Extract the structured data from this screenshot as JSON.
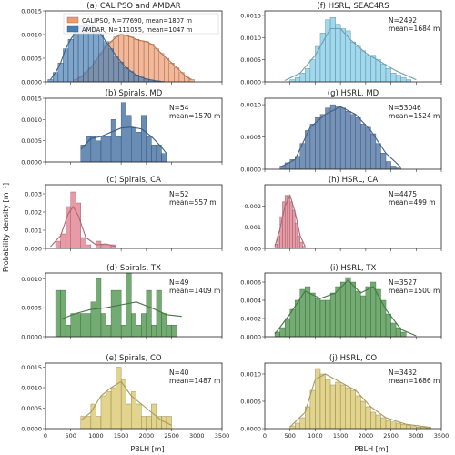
{
  "figure": {
    "ylabel": "Probability density [m⁻¹]",
    "xlabel": "PBLH [m]",
    "xlim": [
      0,
      3500
    ],
    "xticks": [
      0,
      500,
      1000,
      1500,
      2000,
      2500,
      3000,
      3500
    ]
  },
  "chart_data": [
    {
      "type": "bar",
      "id": "a",
      "title": "(a) CALIPSO and AMDAR",
      "ylim": [
        0,
        0.0015
      ],
      "yticks": [
        "0.0000",
        "0.0005",
        "0.0010",
        "0.0015"
      ],
      "legend": "top",
      "bin_width": 100,
      "series": [
        {
          "name": "CALIPSO, N=77690, mean=1807 m",
          "color": "#ee9a6f",
          "x": [
            600,
            700,
            800,
            900,
            1000,
            1100,
            1200,
            1300,
            1400,
            1500,
            1600,
            1700,
            1800,
            1900,
            2000,
            2100,
            2200,
            2300,
            2400,
            2500,
            2600,
            2700,
            2800,
            2900
          ],
          "values": [
            5e-05,
            0.0001,
            0.0002,
            0.0003,
            0.00045,
            0.0006,
            0.00075,
            0.00085,
            0.00095,
            0.001,
            0.00098,
            0.00095,
            0.0009,
            0.00087,
            0.00085,
            0.0008,
            0.0007,
            0.0006,
            0.0005,
            0.0004,
            0.0003,
            0.0002,
            0.0001,
            5e-05
          ]
        },
        {
          "name": "AMDAR, N=111055, mean=1047 m",
          "color": "#4a7fb3",
          "x": [
            100,
            200,
            300,
            400,
            500,
            600,
            700,
            800,
            900,
            1000,
            1100,
            1200,
            1300,
            1400,
            1500,
            1600,
            1700,
            1800,
            1900,
            2000,
            2100,
            2200,
            2300
          ],
          "values": [
            5e-05,
            0.0002,
            0.0004,
            0.0007,
            0.0009,
            0.00105,
            0.00118,
            0.00122,
            0.0012,
            0.00113,
            0.001,
            0.00085,
            0.0007,
            0.00055,
            0.00042,
            0.0003,
            0.00022,
            0.00015,
            0.0001,
            6e-05,
            4e-05,
            2e-05,
            1e-05
          ]
        }
      ]
    },
    {
      "type": "bar",
      "id": "b",
      "title": "(b) Spirals, MD",
      "annotation": [
        "N=54",
        "mean=1570 m"
      ],
      "ylim": [
        0,
        0.0015
      ],
      "yticks": [
        "0.0000",
        "0.0005",
        "0.0010",
        "0.0015"
      ],
      "color": "#4f79a8",
      "bin_width": 100,
      "x": [
        750,
        850,
        950,
        1050,
        1150,
        1250,
        1350,
        1450,
        1550,
        1650,
        1750,
        1850,
        1950,
        2050,
        2150,
        2250,
        2350
      ],
      "values": [
        0.0004,
        0.0006,
        0.0006,
        0.0005,
        0.0006,
        0.0006,
        0.001,
        0.0006,
        0.0014,
        0.0011,
        0.0008,
        0.0007,
        0.0011,
        0.0006,
        0.0004,
        0.0004,
        0.0002
      ],
      "kde": [
        [
          700,
          0.0003
        ],
        [
          900,
          0.00055
        ],
        [
          1100,
          0.0006
        ],
        [
          1300,
          0.0007
        ],
        [
          1500,
          0.0008
        ],
        [
          1700,
          0.00082
        ],
        [
          1900,
          0.00078
        ],
        [
          2100,
          0.0006
        ],
        [
          2300,
          0.00035
        ],
        [
          2400,
          0.0002
        ]
      ]
    },
    {
      "type": "bar",
      "id": "c",
      "title": "(c) Spirals, CA",
      "annotation": [
        "N=52",
        "mean=557 m"
      ],
      "ylim": [
        0,
        0.0035
      ],
      "yticks": [
        "0.000",
        "0.001",
        "0.002",
        "0.003"
      ],
      "color": "#e48a96",
      "bin_width": 100,
      "x": [
        250,
        350,
        450,
        550,
        650,
        750,
        850,
        950,
        1050,
        1150,
        1250,
        1350
      ],
      "values": [
        0.0004,
        0.0008,
        0.0023,
        0.0031,
        0.0025,
        0.0006,
        0.0002,
        0,
        0.0004,
        0.0002,
        0.0002,
        0.0002
      ],
      "kde": [
        [
          100,
          0.0001
        ],
        [
          300,
          0.0007
        ],
        [
          450,
          0.0019
        ],
        [
          550,
          0.0023
        ],
        [
          650,
          0.0018
        ],
        [
          800,
          0.0006
        ],
        [
          1000,
          0.0002
        ],
        [
          1200,
          0.00025
        ],
        [
          1400,
          0.0001
        ]
      ]
    },
    {
      "type": "bar",
      "id": "d",
      "title": "(d) Spirals, TX",
      "annotation": [
        "N=49",
        "mean=1409 m"
      ],
      "ylim": [
        0,
        0.0011
      ],
      "yticks": [
        "0.0000",
        "0.0005",
        "0.0010"
      ],
      "color": "#5a9e5a",
      "bin_width": 100,
      "x": [
        250,
        350,
        450,
        550,
        650,
        750,
        850,
        950,
        1050,
        1150,
        1250,
        1350,
        1450,
        1550,
        1650,
        1750,
        1850,
        1950,
        2050,
        2150,
        2250,
        2350,
        2450,
        2550
      ],
      "values": [
        0.0008,
        0.0008,
        0.0002,
        0.0004,
        0.0004,
        0.0004,
        0.0004,
        0.0006,
        0.001,
        0.0004,
        0.0002,
        0.0008,
        0.0008,
        0.0002,
        0.0011,
        0.0004,
        0.0002,
        0.0004,
        0.0008,
        0.0002,
        0.0008,
        0.0004,
        0.0002,
        0.0002
      ],
      "kde": [
        [
          300,
          0.0003
        ],
        [
          600,
          0.0004
        ],
        [
          900,
          0.00047
        ],
        [
          1200,
          0.0005
        ],
        [
          1500,
          0.00055
        ],
        [
          1800,
          0.0006
        ],
        [
          2100,
          0.0005
        ],
        [
          2400,
          0.00038
        ],
        [
          2700,
          0.00035
        ]
      ]
    },
    {
      "type": "bar",
      "id": "e",
      "title": "(e) Spirals, CO",
      "annotation": [
        "N=40",
        "mean=1487 m"
      ],
      "ylim": [
        0,
        0.0016
      ],
      "yticks": [
        "0.0000",
        "0.0005",
        "0.0010",
        "0.0015"
      ],
      "color": "#ddcd79",
      "bin_width": 100,
      "x": [
        750,
        850,
        950,
        1050,
        1150,
        1250,
        1350,
        1450,
        1550,
        1650,
        1750,
        1850,
        1950,
        2050,
        2150,
        2250,
        2350,
        2450
      ],
      "values": [
        0.0003,
        0.0003,
        0.0006,
        0.0003,
        0.0008,
        0.0009,
        0.001,
        0.0015,
        0.0012,
        0.0006,
        0.0009,
        0.0006,
        0.0003,
        0.0003,
        0.0006,
        0.0003,
        0.0003,
        0.0003
      ],
      "kde": [
        [
          700,
          0.0002
        ],
        [
          900,
          0.0004
        ],
        [
          1100,
          0.0008
        ],
        [
          1300,
          0.001
        ],
        [
          1500,
          0.00115
        ],
        [
          1700,
          0.0008
        ],
        [
          1900,
          0.0006
        ],
        [
          2100,
          0.0004
        ],
        [
          2300,
          0.0002
        ],
        [
          2500,
          8e-05
        ]
      ]
    },
    {
      "type": "bar",
      "id": "f",
      "title": "(f) HSRL, SEAC4RS",
      "annotation": [
        "N=2492",
        "mean=1684 m"
      ],
      "ylim": [
        0,
        0.0016
      ],
      "yticks": [
        "0.0000",
        "0.0005",
        "0.0010",
        "0.0015"
      ],
      "color": "#8fd2ea",
      "bin_width": 100,
      "x": [
        550,
        650,
        750,
        850,
        950,
        1050,
        1150,
        1250,
        1350,
        1450,
        1550,
        1650,
        1750,
        1850,
        1950,
        2050,
        2150,
        2250,
        2350,
        2450,
        2550,
        2650,
        2750,
        2850
      ],
      "values": [
        5e-05,
        0.0001,
        0.0002,
        0.0003,
        0.0005,
        0.0008,
        0.0011,
        0.0014,
        0.00145,
        0.0013,
        0.0012,
        0.00115,
        0.0009,
        0.0008,
        0.0007,
        0.0006,
        0.0006,
        0.0005,
        0.0004,
        0.0003,
        0.0002,
        0.00015,
        0.0001,
        5e-05
      ],
      "kde": [
        [
          400,
          3e-05
        ],
        [
          700,
          0.0002
        ],
        [
          1000,
          0.0006
        ],
        [
          1300,
          0.0012
        ],
        [
          1500,
          0.0012
        ],
        [
          1700,
          0.00095
        ],
        [
          2000,
          0.00065
        ],
        [
          2300,
          0.00045
        ],
        [
          2600,
          0.00025
        ],
        [
          3000,
          5e-05
        ]
      ]
    },
    {
      "type": "bar",
      "id": "g",
      "title": "(g) HSRL, MD",
      "annotation": [
        "N=53046",
        "mean=1524 m"
      ],
      "ylim": [
        0,
        0.0011
      ],
      "yticks": [
        "0.0000",
        "0.0005",
        "0.0010"
      ],
      "color": "#5d7fad",
      "bin_width": 100,
      "x": [
        350,
        450,
        550,
        650,
        750,
        850,
        950,
        1050,
        1150,
        1250,
        1350,
        1450,
        1550,
        1650,
        1750,
        1850,
        1950,
        2050,
        2150,
        2250,
        2350,
        2450,
        2550,
        2650
      ],
      "values": [
        5e-05,
        0.0001,
        0.00015,
        0.0002,
        0.0004,
        0.0006,
        0.0007,
        0.0008,
        0.00085,
        0.00095,
        0.001,
        0.00098,
        0.00095,
        0.0009,
        0.00085,
        0.0008,
        0.0007,
        0.00065,
        0.00055,
        0.0004,
        0.00025,
        0.00012,
        5e-05,
        2e-05
      ],
      "kde": [
        [
          300,
          3e-05
        ],
        [
          600,
          0.00015
        ],
        [
          900,
          0.00065
        ],
        [
          1200,
          0.00085
        ],
        [
          1500,
          0.00097
        ],
        [
          1800,
          0.00085
        ],
        [
          2100,
          0.0006
        ],
        [
          2400,
          0.00025
        ],
        [
          2700,
          3e-05
        ]
      ]
    },
    {
      "type": "bar",
      "id": "h",
      "title": "(h) HSRL, CA",
      "annotation": [
        "N=4475",
        "mean=499 m"
      ],
      "ylim": [
        0,
        0.003
      ],
      "yticks": [
        "0.000",
        "0.001",
        "0.002"
      ],
      "color": "#e48a96",
      "bin_width": 50,
      "x": [
        225,
        275,
        325,
        375,
        425,
        475,
        525,
        575,
        625,
        675,
        725,
        775
      ],
      "values": [
        0.0002,
        0.0006,
        0.0015,
        0.0022,
        0.0025,
        0.0025,
        0.0022,
        0.0018,
        0.0012,
        0.0006,
        0.0003,
        0.0001
      ],
      "kde": [
        [
          200,
          0.0001
        ],
        [
          300,
          0.0009
        ],
        [
          400,
          0.002
        ],
        [
          500,
          0.0025
        ],
        [
          600,
          0.0017
        ],
        [
          700,
          0.0006
        ],
        [
          800,
          0.0001
        ]
      ]
    },
    {
      "type": "bar",
      "id": "i",
      "title": "(i) HSRL, TX",
      "annotation": [
        "N=3527",
        "mean=1500 m"
      ],
      "ylim": [
        0,
        0.0007
      ],
      "yticks": [
        "0.0000",
        "0.0002",
        "0.0004",
        "0.0006"
      ],
      "color": "#5a9e5a",
      "bin_width": 100,
      "x": [
        250,
        350,
        450,
        550,
        650,
        750,
        850,
        950,
        1050,
        1150,
        1250,
        1350,
        1450,
        1550,
        1650,
        1750,
        1850,
        1950,
        2050,
        2150,
        2250,
        2350,
        2450,
        2550,
        2650,
        2750
      ],
      "values": [
        5e-05,
        0.0001,
        0.0002,
        0.0003,
        0.0004,
        0.00052,
        0.00055,
        0.00048,
        0.00042,
        0.0004,
        0.0004,
        0.00048,
        0.00055,
        0.0006,
        0.00065,
        0.0006,
        0.0005,
        0.00045,
        0.00055,
        0.0006,
        0.00052,
        0.0004,
        0.00025,
        0.00015,
        0.0001,
        5e-05
      ],
      "kde": [
        [
          200,
          3e-05
        ],
        [
          500,
          0.00025
        ],
        [
          800,
          0.0005
        ],
        [
          1100,
          0.00042
        ],
        [
          1400,
          0.00048
        ],
        [
          1650,
          0.00062
        ],
        [
          1900,
          0.00048
        ],
        [
          2150,
          0.00055
        ],
        [
          2400,
          0.0003
        ],
        [
          2700,
          8e-05
        ],
        [
          3000,
          1e-05
        ]
      ]
    },
    {
      "type": "bar",
      "id": "j",
      "title": "(j) HSRL, CO",
      "annotation": [
        "N=3432",
        "mean=1686 m"
      ],
      "ylim": [
        0,
        0.0012
      ],
      "yticks": [
        "0.0000",
        "0.0005",
        "0.0010"
      ],
      "color": "#ddcd79",
      "bin_width": 100,
      "x": [
        550,
        650,
        750,
        850,
        950,
        1050,
        1150,
        1250,
        1350,
        1450,
        1550,
        1650,
        1750,
        1850,
        1950,
        2050,
        2150,
        2250,
        2350,
        2450,
        2550,
        2650,
        2750,
        2850,
        2950,
        3050,
        3150,
        3250
      ],
      "values": [
        5e-05,
        0.0001,
        0.0002,
        0.0004,
        0.0007,
        0.0011,
        0.001,
        0.0009,
        0.0008,
        0.00085,
        0.0008,
        0.00075,
        0.0007,
        0.0006,
        0.0005,
        0.0004,
        0.0003,
        0.00025,
        0.0002,
        0.00015,
        0.00012,
        0.0001,
        8e-05,
        6e-05,
        4e-05,
        3e-05,
        2e-05,
        1e-05
      ],
      "kde": [
        [
          500,
          3e-05
        ],
        [
          800,
          0.0003
        ],
        [
          1000,
          0.0009
        ],
        [
          1200,
          0.001
        ],
        [
          1500,
          0.00085
        ],
        [
          1800,
          0.0007
        ],
        [
          2100,
          0.0004
        ],
        [
          2400,
          0.0002
        ],
        [
          2800,
          8e-05
        ],
        [
          3300,
          2e-05
        ]
      ]
    }
  ]
}
